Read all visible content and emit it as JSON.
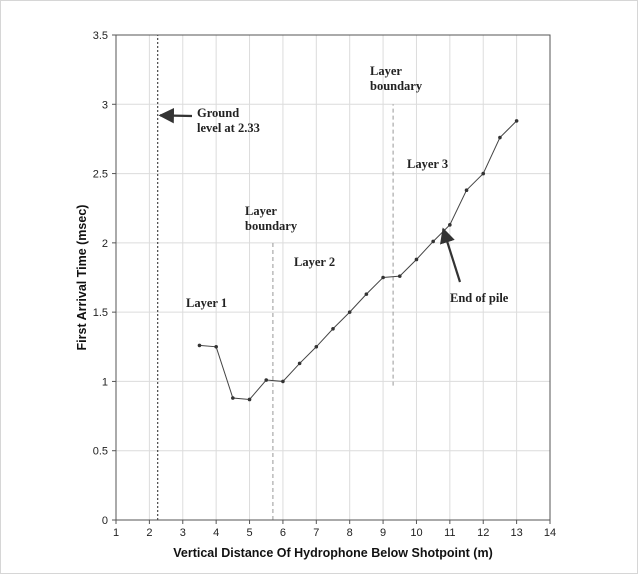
{
  "chart_data": {
    "type": "line",
    "xlabel": "Vertical Distance Of Hydrophone Below Shotpoint (m)",
    "ylabel": "First Arrival Time (msec)",
    "xlim": [
      1,
      14
    ],
    "ylim": [
      0,
      3.5
    ],
    "xticks": [
      1,
      2,
      3,
      4,
      5,
      6,
      7,
      8,
      9,
      10,
      11,
      12,
      13,
      14
    ],
    "yticks": [
      0,
      0.5,
      1,
      1.5,
      2,
      2.5,
      3,
      3.5
    ],
    "grid": true,
    "series": [
      {
        "color": "#444444",
        "points": [
          [
            3.5,
            1.26
          ],
          [
            4.0,
            1.25
          ],
          [
            4.5,
            0.88
          ],
          [
            5.0,
            0.87
          ],
          [
            5.5,
            1.01
          ],
          [
            6.0,
            1.0
          ],
          [
            6.5,
            1.13
          ],
          [
            7.0,
            1.25
          ],
          [
            7.5,
            1.38
          ],
          [
            8.0,
            1.5
          ],
          [
            8.5,
            1.63
          ],
          [
            9.0,
            1.75
          ],
          [
            9.5,
            1.76
          ],
          [
            10.0,
            1.88
          ],
          [
            10.5,
            2.01
          ],
          [
            11.0,
            2.13
          ],
          [
            11.5,
            2.38
          ],
          [
            12.0,
            2.5
          ],
          [
            12.5,
            2.76
          ],
          [
            13.0,
            2.88
          ]
        ]
      }
    ],
    "vertical_lines": [
      {
        "x": 2.25,
        "y_from": 0,
        "y_to": 3.5,
        "style": "dotted",
        "color": "#222222"
      },
      {
        "x": 5.7,
        "y_from": 0,
        "y_to": 2.02,
        "style": "dashed",
        "color": "#999999"
      },
      {
        "x": 9.3,
        "y_from": 0.97,
        "y_to": 3.0,
        "style": "dashed",
        "color": "#999999"
      }
    ],
    "annotations": [
      {
        "lines": [
          "Ground",
          "level at 2.33"
        ]
      },
      {
        "lines": [
          "Layer",
          "boundary"
        ]
      },
      {
        "lines": [
          "Layer",
          "boundary"
        ]
      },
      {
        "lines": [
          "Layer 1"
        ]
      },
      {
        "lines": [
          "Layer 2"
        ]
      },
      {
        "lines": [
          "Layer 3"
        ]
      },
      {
        "lines": [
          "End of pile"
        ]
      }
    ],
    "arrows": [
      {
        "target_x": 2.32,
        "target_y": 2.92
      },
      {
        "target_x": 10.8,
        "target_y": 2.1
      }
    ]
  }
}
